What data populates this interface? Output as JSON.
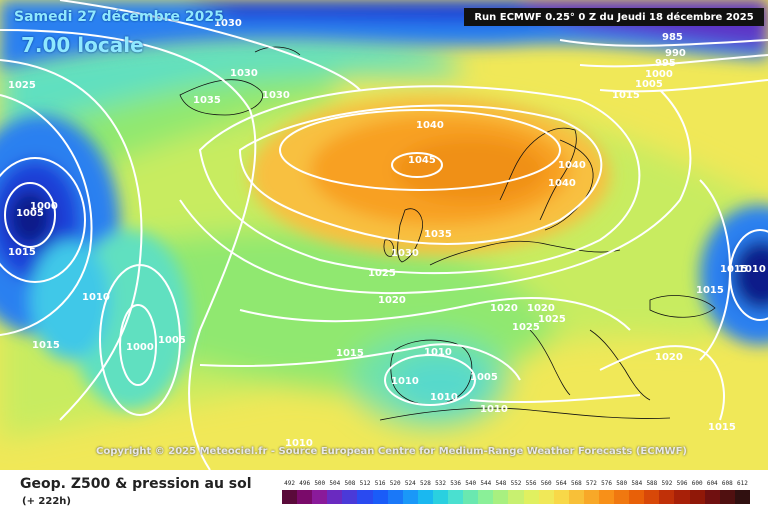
{
  "header": {
    "date": "Samedi 27 décembre 2025",
    "time": "7.00 locale",
    "run_info": "Run ECMWF 0.25° 0 Z du Jeudi 18 décembre 2025"
  },
  "copyright": "Copyright © 2025 Meteociel.fr - Source European Centre for Medium-Range Weather Forecasts (ECMWF)",
  "footer": {
    "title": "Geop. Z500 & pression au sol",
    "subtitle": "(+ 222h)"
  },
  "legend": {
    "values": [
      "492",
      "496",
      "500",
      "504",
      "508",
      "512",
      "516",
      "520",
      "524",
      "528",
      "532",
      "536",
      "540",
      "544",
      "548",
      "552",
      "556",
      "560",
      "564",
      "568",
      "572",
      "576",
      "580",
      "584",
      "588",
      "592",
      "596",
      "600",
      "604",
      "608",
      "612"
    ],
    "colors": [
      "#5a0a3a",
      "#7a0a6a",
      "#8a1a9a",
      "#6a2ac0",
      "#4a3ad8",
      "#2a4af0",
      "#1a5cf8",
      "#1a78f8",
      "#1a98f8",
      "#1ab8f0",
      "#2ad0e0",
      "#4ae0d0",
      "#6ae8b0",
      "#8af098",
      "#a8f080",
      "#c8f070",
      "#e0f060",
      "#f0e858",
      "#f8d848",
      "#f8c038",
      "#f8a828",
      "#f89018",
      "#f07810",
      "#e86008",
      "#d84808",
      "#c03008",
      "#a82008",
      "#901808",
      "#701010",
      "#501010",
      "#301010"
    ]
  },
  "map": {
    "isobar_labels": [
      "1030",
      "1030",
      "1030",
      "1035",
      "1025",
      "1000",
      "1005",
      "1015",
      "1010",
      "1015",
      "1000",
      "1005",
      "1040",
      "1045",
      "1040",
      "1040",
      "1035",
      "1030",
      "1025",
      "1020",
      "1020",
      "1020",
      "1025",
      "1025",
      "1015",
      "1010",
      "1010",
      "1010",
      "1005",
      "1010",
      "1020",
      "1015",
      "1015",
      "985",
      "990",
      "995",
      "1000",
      "1005",
      "1015",
      "1010",
      "1015",
      "1010"
    ],
    "colors": {
      "low_pressure_core": "#0a1a8a",
      "deep_blue": "#1a40d8",
      "mid_blue": "#2a80f0",
      "cyan": "#40c8e8",
      "aqua": "#60e0c0",
      "green": "#90e870",
      "yellow_green": "#c8ec60",
      "yellow": "#f0e858",
      "light_orange": "#f8c040",
      "orange": "#f8a020",
      "dark_orange": "#f09018",
      "isobar": "#ffffff",
      "coastline": "#111111"
    }
  }
}
